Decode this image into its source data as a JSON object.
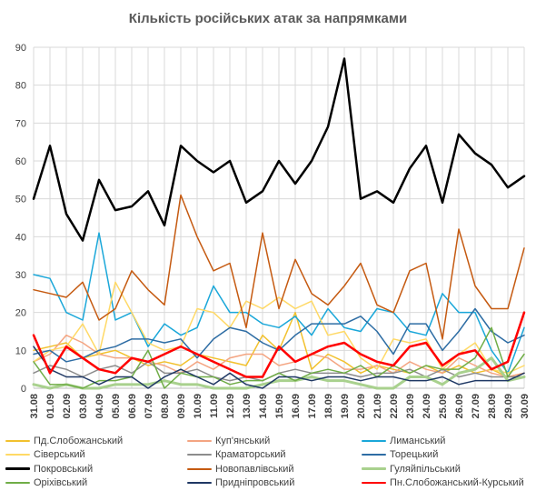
{
  "chart_data": {
    "type": "line",
    "title": "Кількість російських атак за напрямками",
    "ylim": [
      0,
      90
    ],
    "yticks": [
      0,
      10,
      20,
      30,
      40,
      50,
      60,
      70,
      80,
      90
    ],
    "grid": true,
    "legend_position": "bottom",
    "x": [
      "31.08",
      "01.09",
      "02.09",
      "03.09",
      "04.09",
      "05.09",
      "06.09",
      "07.09",
      "08.09",
      "09.09",
      "10.09",
      "11.09",
      "12.09",
      "13.09",
      "14.09",
      "15.09",
      "16.09",
      "17.09",
      "18.09",
      "19.09",
      "20.09",
      "21.09",
      "22.09",
      "23.09",
      "24.09",
      "25.09",
      "26.09",
      "27.09",
      "28.09",
      "29.09",
      "30.09"
    ],
    "series": [
      {
        "name": "Пд.Слобожанський",
        "color": "#f2c12e",
        "width": 1.5,
        "values": [
          10,
          11,
          12,
          8,
          9,
          10,
          8,
          6,
          7,
          6,
          9,
          8,
          7,
          6,
          14,
          10,
          20,
          5,
          9,
          7,
          4,
          6,
          5,
          4,
          6,
          4,
          6,
          4,
          5,
          3,
          4
        ]
      },
      {
        "name": "Куп'янський",
        "color": "#f4a582",
        "width": 1.5,
        "values": [
          7,
          9,
          14,
          12,
          9,
          8,
          8,
          7,
          6,
          4,
          7,
          5,
          8,
          9,
          9,
          6,
          7,
          9,
          8,
          5,
          5,
          6,
          4,
          7,
          5,
          4,
          8,
          6,
          4,
          3,
          4
        ]
      },
      {
        "name": "Лиманський",
        "color": "#1aa7d9",
        "width": 1.5,
        "values": [
          30,
          29,
          20,
          18,
          41,
          18,
          20,
          11,
          17,
          14,
          16,
          27,
          20,
          20,
          17,
          16,
          19,
          14,
          21,
          16,
          15,
          21,
          20,
          15,
          14,
          25,
          20,
          20,
          10,
          4,
          16
        ]
      },
      {
        "name": "Сіверський",
        "color": "#ffd966",
        "width": 1.5,
        "values": [
          7,
          10,
          11,
          17,
          9,
          28,
          20,
          12,
          10,
          11,
          21,
          20,
          16,
          23,
          21,
          24,
          21,
          23,
          14,
          15,
          8,
          5,
          13,
          12,
          13,
          5,
          9,
          12,
          5,
          4,
          6
        ]
      },
      {
        "name": "Краматорський",
        "color": "#8c8c8c",
        "width": 1.5,
        "values": [
          4,
          6,
          5,
          3,
          5,
          6,
          4,
          7,
          4,
          4,
          5,
          3,
          2,
          3,
          2,
          4,
          5,
          4,
          4,
          4,
          3,
          4,
          4,
          5,
          3,
          5,
          3,
          4,
          3,
          3,
          3
        ]
      },
      {
        "name": "Торецький",
        "color": "#2e6da4",
        "width": 1.5,
        "values": [
          9,
          10,
          7,
          8,
          10,
          11,
          13,
          13,
          12,
          13,
          8,
          13,
          16,
          15,
          12,
          10,
          14,
          17,
          17,
          17,
          19,
          15,
          9,
          17,
          17,
          10,
          15,
          21,
          15,
          12,
          14
        ]
      },
      {
        "name": "Покровський",
        "color": "#000000",
        "width": 2.5,
        "values": [
          50,
          64,
          46,
          39,
          55,
          47,
          48,
          52,
          43,
          64,
          60,
          57,
          60,
          49,
          52,
          60,
          54,
          60,
          69,
          87,
          50,
          52,
          49,
          58,
          64,
          49,
          67,
          62,
          59,
          53,
          56
        ]
      },
      {
        "name": "Новопавлівський",
        "color": "#c55a11",
        "width": 1.5,
        "values": [
          26,
          25,
          24,
          28,
          18,
          21,
          31,
          26,
          22,
          51,
          40,
          31,
          33,
          16,
          41,
          21,
          34,
          25,
          22,
          27,
          33,
          22,
          20,
          31,
          33,
          13,
          42,
          27,
          21,
          21,
          37
        ]
      },
      {
        "name": "Гуляйпільський",
        "color": "#a9d18e",
        "width": 3,
        "values": [
          1,
          0,
          1,
          0,
          0,
          1,
          1,
          1,
          2,
          1,
          1,
          0,
          0,
          0,
          1,
          2,
          2,
          3,
          2,
          2,
          1,
          0,
          0,
          3,
          3,
          1,
          4,
          5,
          8,
          2,
          3
        ]
      },
      {
        "name": "Оріхівський",
        "color": "#70ad47",
        "width": 1.5,
        "values": [
          7,
          1,
          1,
          0,
          2,
          2,
          3,
          10,
          0,
          4,
          3,
          3,
          1,
          2,
          2,
          4,
          2,
          4,
          5,
          4,
          6,
          3,
          6,
          4,
          6,
          5,
          5,
          8,
          16,
          3,
          9
        ]
      },
      {
        "name": "Придніпровський",
        "color": "#1f3864",
        "width": 1.5,
        "values": [
          11,
          5,
          3,
          3,
          1,
          3,
          3,
          0,
          3,
          5,
          3,
          1,
          4,
          1,
          0,
          3,
          3,
          2,
          3,
          3,
          2,
          3,
          3,
          2,
          2,
          3,
          1,
          2,
          2,
          2,
          4
        ]
      },
      {
        "name": "Пн.Слобожанський-Курський",
        "color": "#ff0000",
        "width": 2.5,
        "values": [
          14,
          4,
          11,
          8,
          5,
          4,
          8,
          7,
          9,
          11,
          9,
          7,
          5,
          3,
          3,
          11,
          7,
          9,
          11,
          12,
          9,
          7,
          6,
          11,
          12,
          6,
          9,
          10,
          5,
          7,
          20
        ]
      }
    ]
  }
}
